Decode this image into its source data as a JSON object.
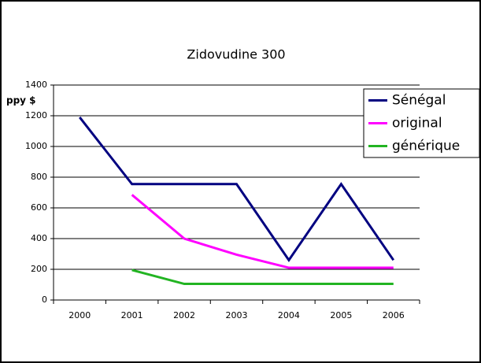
{
  "chart_data": {
    "type": "line",
    "title": "Zidovudine 300",
    "y_label": "ppy $",
    "categories": [
      "2000",
      "2001",
      "2002",
      "2003",
      "2004",
      "2005",
      "2006"
    ],
    "series": [
      {
        "name": "Sénégal",
        "color": "#000080",
        "values": [
          1190,
          755,
          755,
          755,
          260,
          755,
          260
        ]
      },
      {
        "name": "original",
        "color": "#ff00ff",
        "values": [
          null,
          685,
          400,
          295,
          210,
          210,
          210
        ]
      },
      {
        "name": "générique",
        "color": "#22b422",
        "values": [
          null,
          195,
          105,
          105,
          105,
          105,
          105
        ]
      }
    ],
    "ylim": [
      0,
      1400
    ],
    "yticks": [
      0,
      200,
      400,
      600,
      800,
      1000,
      1200,
      1400
    ],
    "grid": true,
    "legend": "right"
  }
}
